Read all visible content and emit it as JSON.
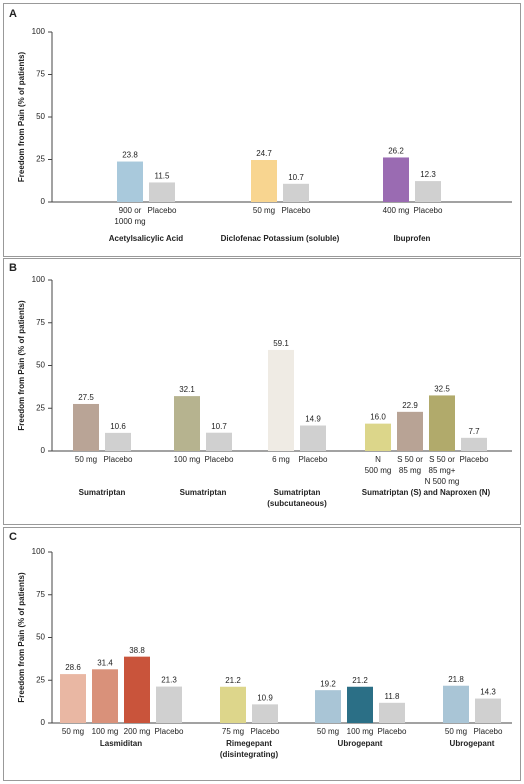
{
  "chart_data": [
    {
      "type": "bar",
      "panel": "A",
      "ylabel": "Freedom from Pain (% of patients)",
      "ylim": [
        0,
        100
      ],
      "yticks": [
        0,
        25,
        50,
        75,
        100
      ],
      "groups": [
        {
          "name": [
            "Acetylsalicylic Acid"
          ],
          "categories": [
            [
              "900 or",
              "1000 mg"
            ],
            [
              "Placebo"
            ]
          ],
          "values": [
            23.8,
            11.5
          ],
          "colors": [
            "#a9c9dc",
            "#d0d0d0"
          ]
        },
        {
          "name": [
            "Diclofenac Potassium (soluble)"
          ],
          "categories": [
            [
              "50 mg"
            ],
            [
              "Placebo"
            ]
          ],
          "values": [
            24.7,
            10.7
          ],
          "colors": [
            "#f8d590",
            "#d0d0d0"
          ]
        },
        {
          "name": [
            "Ibuprofen"
          ],
          "categories": [
            [
              "400 mg"
            ],
            [
              "Placebo"
            ]
          ],
          "values": [
            26.2,
            12.3
          ],
          "colors": [
            "#9a6bb2",
            "#d0d0d0"
          ]
        }
      ]
    },
    {
      "type": "bar",
      "panel": "B",
      "ylabel": "Freedom from Pain (% of patients)",
      "ylim": [
        0,
        100
      ],
      "yticks": [
        0,
        25,
        50,
        75,
        100
      ],
      "groups": [
        {
          "name": [
            "Sumatriptan"
          ],
          "categories": [
            [
              "50 mg"
            ],
            [
              "Placebo"
            ]
          ],
          "values": [
            27.5,
            10.6
          ],
          "colors": [
            "#b9a496",
            "#d0d0d0"
          ]
        },
        {
          "name": [
            "Sumatriptan"
          ],
          "categories": [
            [
              "100 mg"
            ],
            [
              "Placebo"
            ]
          ],
          "values": [
            32.1,
            10.7
          ],
          "colors": [
            "#b6b38f",
            "#d0d0d0"
          ]
        },
        {
          "name": [
            "Sumatriptan",
            "(subcutaneous)"
          ],
          "categories": [
            [
              "6 mg"
            ],
            [
              "Placebo"
            ]
          ],
          "values": [
            59.1,
            14.9
          ],
          "colors": [
            "#efebe4",
            "#d0d0d0"
          ]
        },
        {
          "name": [
            "Sumatriptan (S) and Naproxen (N)"
          ],
          "categories": [
            [
              "N",
              "500 mg"
            ],
            [
              "S 50 or",
              "85 mg"
            ],
            [
              "S 50 or",
              "85 mg+",
              "N 500 mg"
            ],
            [
              "Placebo"
            ]
          ],
          "values": [
            16.0,
            22.9,
            32.5,
            7.7
          ],
          "value_labels": [
            "16.0",
            "22.9",
            "32.5",
            "7.7"
          ],
          "colors": [
            "#dcd68a",
            "#b8a395",
            "#b1aa6b",
            "#d0d0d0"
          ]
        }
      ]
    },
    {
      "type": "bar",
      "panel": "C",
      "ylabel": "Freedom from Pain (% of patients)",
      "ylim": [
        0,
        100
      ],
      "yticks": [
        0,
        25,
        50,
        75,
        100
      ],
      "groups": [
        {
          "name": [
            "Lasmiditan"
          ],
          "categories": [
            [
              "50 mg"
            ],
            [
              "100 mg"
            ],
            [
              "200 mg"
            ],
            [
              "Placebo"
            ]
          ],
          "values": [
            28.6,
            31.4,
            38.8,
            21.3
          ],
          "colors": [
            "#e9b7a3",
            "#d9917a",
            "#c9543b",
            "#d0d0d0"
          ]
        },
        {
          "name": [
            "Rimegepant",
            "(disintegrating)"
          ],
          "categories": [
            [
              "75 mg"
            ],
            [
              "Placebo"
            ]
          ],
          "values": [
            21.2,
            10.9
          ],
          "colors": [
            "#ddd68b",
            "#d0d0d0"
          ]
        },
        {
          "name": [
            "Ubrogepant"
          ],
          "categories": [
            [
              "50 mg"
            ],
            [
              "100 mg"
            ],
            [
              "Placebo"
            ]
          ],
          "values": [
            19.2,
            21.2,
            11.8
          ],
          "colors": [
            "#a9c5d6",
            "#2b6f86",
            "#d0d0d0"
          ]
        },
        {
          "name": [
            "Ubrogepant"
          ],
          "categories": [
            [
              "50 mg"
            ],
            [
              "Placebo"
            ]
          ],
          "values": [
            21.8,
            14.3
          ],
          "colors": [
            "#a9c5d6",
            "#d0d0d0"
          ]
        }
      ]
    }
  ]
}
